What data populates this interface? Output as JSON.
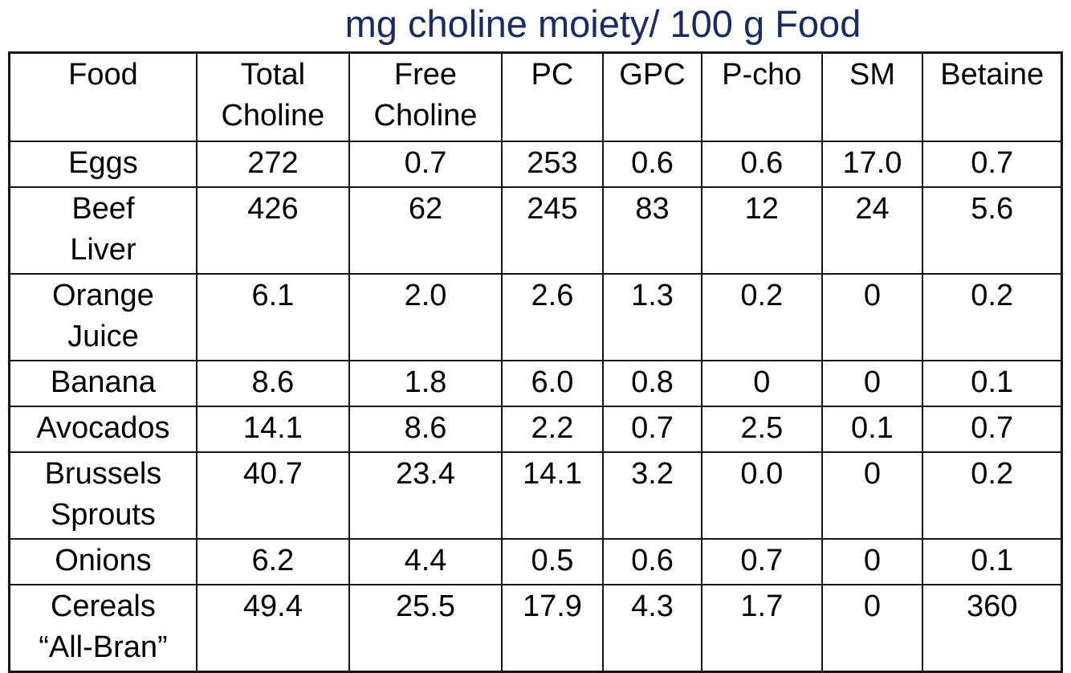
{
  "title": "mg choline moiety/ 100 g Food",
  "colors": {
    "title": "#1a2a63",
    "food": "#3a63a0",
    "highlight": "#b3342f",
    "text": "#000000",
    "border": "#161616"
  },
  "table": {
    "columns": [
      {
        "label": "Food",
        "width": 17.8,
        "variant": "food"
      },
      {
        "label": "Total\nCholine",
        "width": 14.5
      },
      {
        "label": "Free\nCholine",
        "width": 14.5
      },
      {
        "label": "PC",
        "width": 9.6
      },
      {
        "label": "GPC",
        "width": 9.4
      },
      {
        "label": "P-cho",
        "width": 11.4
      },
      {
        "label": "SM",
        "width": 9.6
      },
      {
        "label": "Betaine",
        "width": 13.2
      }
    ],
    "rows": [
      {
        "cells": [
          {
            "v": "Eggs",
            "c": "food"
          },
          {
            "v": "272"
          },
          {
            "v": "0.7"
          },
          {
            "v": "253",
            "c": "red"
          },
          {
            "v": "0.6"
          },
          {
            "v": "0.6"
          },
          {
            "v": "17.0"
          },
          {
            "v": "0.7"
          }
        ]
      },
      {
        "cells": [
          {
            "v": "Beef\nLiver",
            "c": "food"
          },
          {
            "v": "426"
          },
          {
            "v": "62"
          },
          {
            "v": "245",
            "c": "red"
          },
          {
            "v": "83"
          },
          {
            "v": "12"
          },
          {
            "v": "24"
          },
          {
            "v": "5.6"
          }
        ]
      },
      {
        "cells": [
          {
            "v": "Orange\nJuice",
            "c": "food"
          },
          {
            "v": "6.1"
          },
          {
            "v": "2.0"
          },
          {
            "v": "2.6"
          },
          {
            "v": "1.3"
          },
          {
            "v": "0.2"
          },
          {
            "v": "0"
          },
          {
            "v": "0.2"
          }
        ]
      },
      {
        "cells": [
          {
            "v": "Banana",
            "c": "food"
          },
          {
            "v": "8.6"
          },
          {
            "v": "1.8"
          },
          {
            "v": "6.0"
          },
          {
            "v": "0.8"
          },
          {
            "v": "0"
          },
          {
            "v": "0"
          },
          {
            "v": "0.1"
          }
        ]
      },
      {
        "cells": [
          {
            "v": "Avocados",
            "c": "food"
          },
          {
            "v": "14.1"
          },
          {
            "v": "8.6"
          },
          {
            "v": "2.2"
          },
          {
            "v": "0.7"
          },
          {
            "v": "2.5"
          },
          {
            "v": "0.1"
          },
          {
            "v": "0.7"
          }
        ]
      },
      {
        "cells": [
          {
            "v": "Brussels\nSprouts",
            "c": "food"
          },
          {
            "v": "40.7"
          },
          {
            "v": "23.4",
            "c": "red"
          },
          {
            "v": "14.1"
          },
          {
            "v": "3.2"
          },
          {
            "v": "0.0"
          },
          {
            "v": "0"
          },
          {
            "v": "0.2"
          }
        ]
      },
      {
        "cells": [
          {
            "v": "Onions",
            "c": "food"
          },
          {
            "v": "6.2"
          },
          {
            "v": "4.4",
            "c": "red"
          },
          {
            "v": "0.5"
          },
          {
            "v": "0.6"
          },
          {
            "v": "0.7"
          },
          {
            "v": "0"
          },
          {
            "v": "0.1"
          }
        ]
      },
      {
        "cells": [
          {
            "v": "Cereals\n“All-Bran”",
            "c": "food"
          },
          {
            "v": "49.4"
          },
          {
            "v": "25.5",
            "c": "red"
          },
          {
            "v": "17.9"
          },
          {
            "v": "4.3"
          },
          {
            "v": "1.7"
          },
          {
            "v": "0"
          },
          {
            "v": "360",
            "c": "red"
          }
        ]
      }
    ]
  }
}
